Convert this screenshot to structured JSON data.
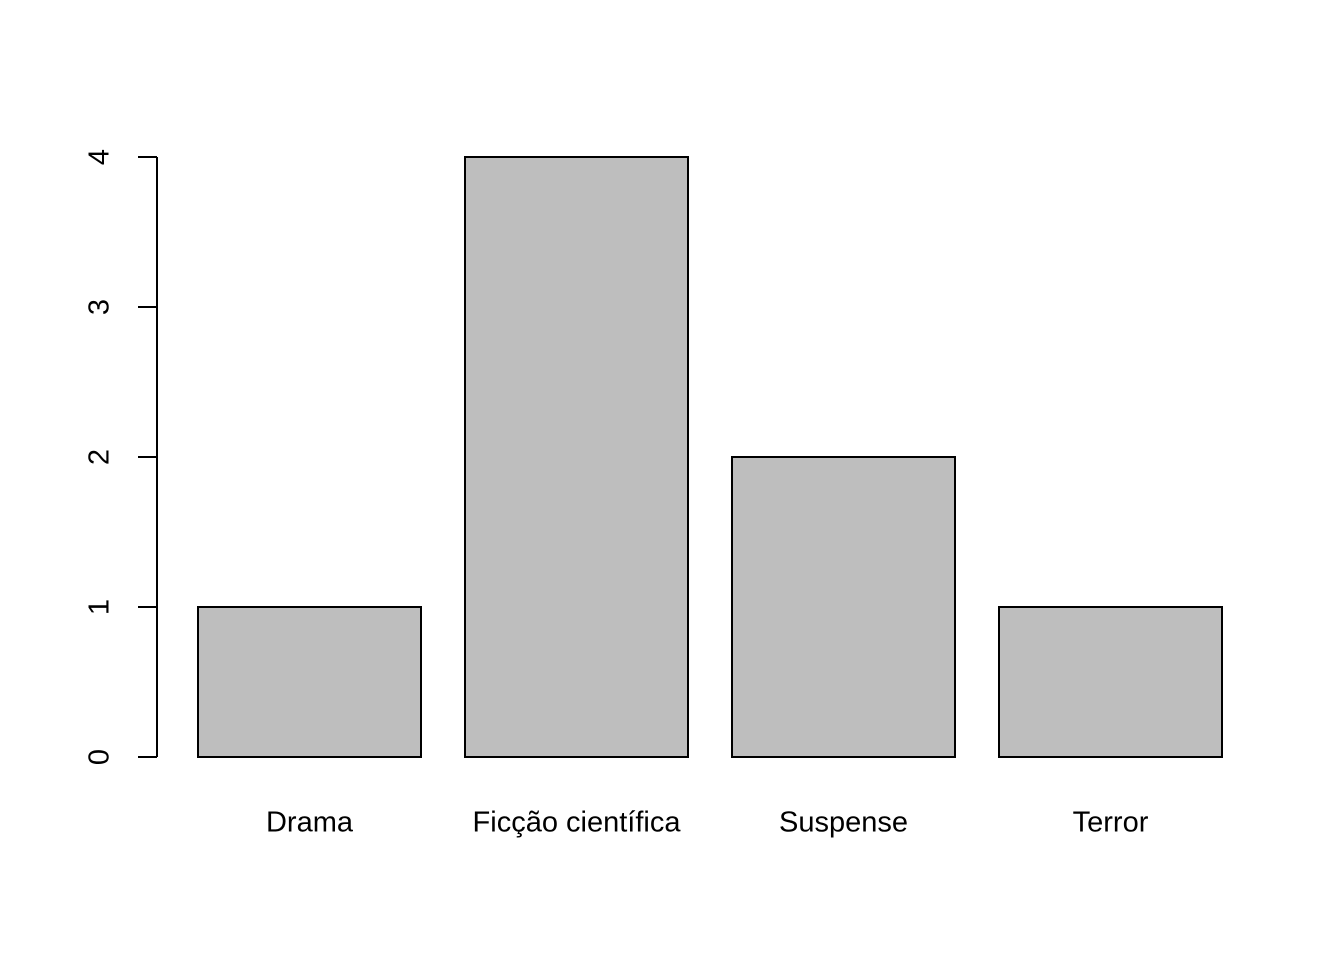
{
  "chart_data": {
    "type": "bar",
    "title": "",
    "xlabel": "",
    "ylabel": "",
    "categories": [
      "Drama",
      "Ficção científica",
      "Suspense",
      "Terror"
    ],
    "values": [
      1,
      4,
      2,
      1
    ],
    "ylim": [
      0,
      4
    ],
    "yticks": [
      "0",
      "1",
      "2",
      "3",
      "4"
    ],
    "grid": false,
    "legend": "none",
    "colors": {
      "bar_fill": "#bebebe",
      "bar_stroke": "#000000",
      "axis": "#000000",
      "background": "#ffffff"
    }
  }
}
